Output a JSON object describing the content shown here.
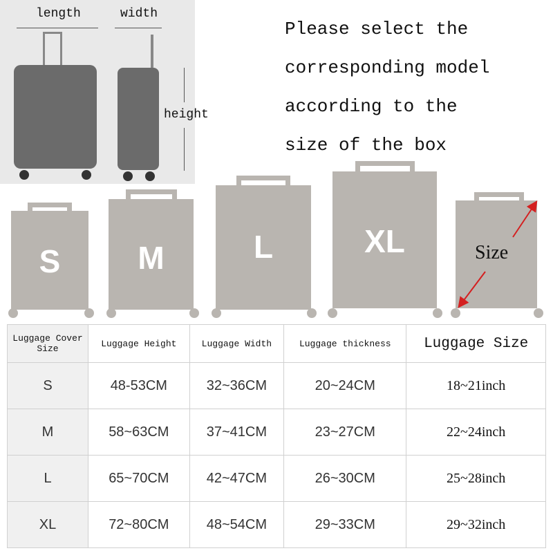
{
  "diagram": {
    "length_label": "length",
    "width_label": "width",
    "height_label": "height"
  },
  "intro": "Please select the\ncorresponding model\naccording to the\nsize of the box",
  "sizes": [
    "S",
    "M",
    "L",
    "XL"
  ],
  "size_label": "Size",
  "colors": {
    "case": "#b9b5b0",
    "arrow": "#d42020",
    "luggage_photo": "#6b6b6b"
  },
  "table": {
    "headers": [
      "Luggage Cover Size",
      "Luggage Height",
      "Luggage Width",
      "Luggage thickness",
      "Luggage Size"
    ],
    "rows": [
      [
        "S",
        "48-53CM",
        "32~36CM",
        "20~24CM",
        "18~21inch"
      ],
      [
        "M",
        "58~63CM",
        "37~41CM",
        "23~27CM",
        "22~24inch"
      ],
      [
        "L",
        "65~70CM",
        "42~47CM",
        "26~30CM",
        "25~28inch"
      ],
      [
        "XL",
        "72~80CM",
        "48~54CM",
        "29~33CM",
        "29~32inch"
      ]
    ]
  }
}
